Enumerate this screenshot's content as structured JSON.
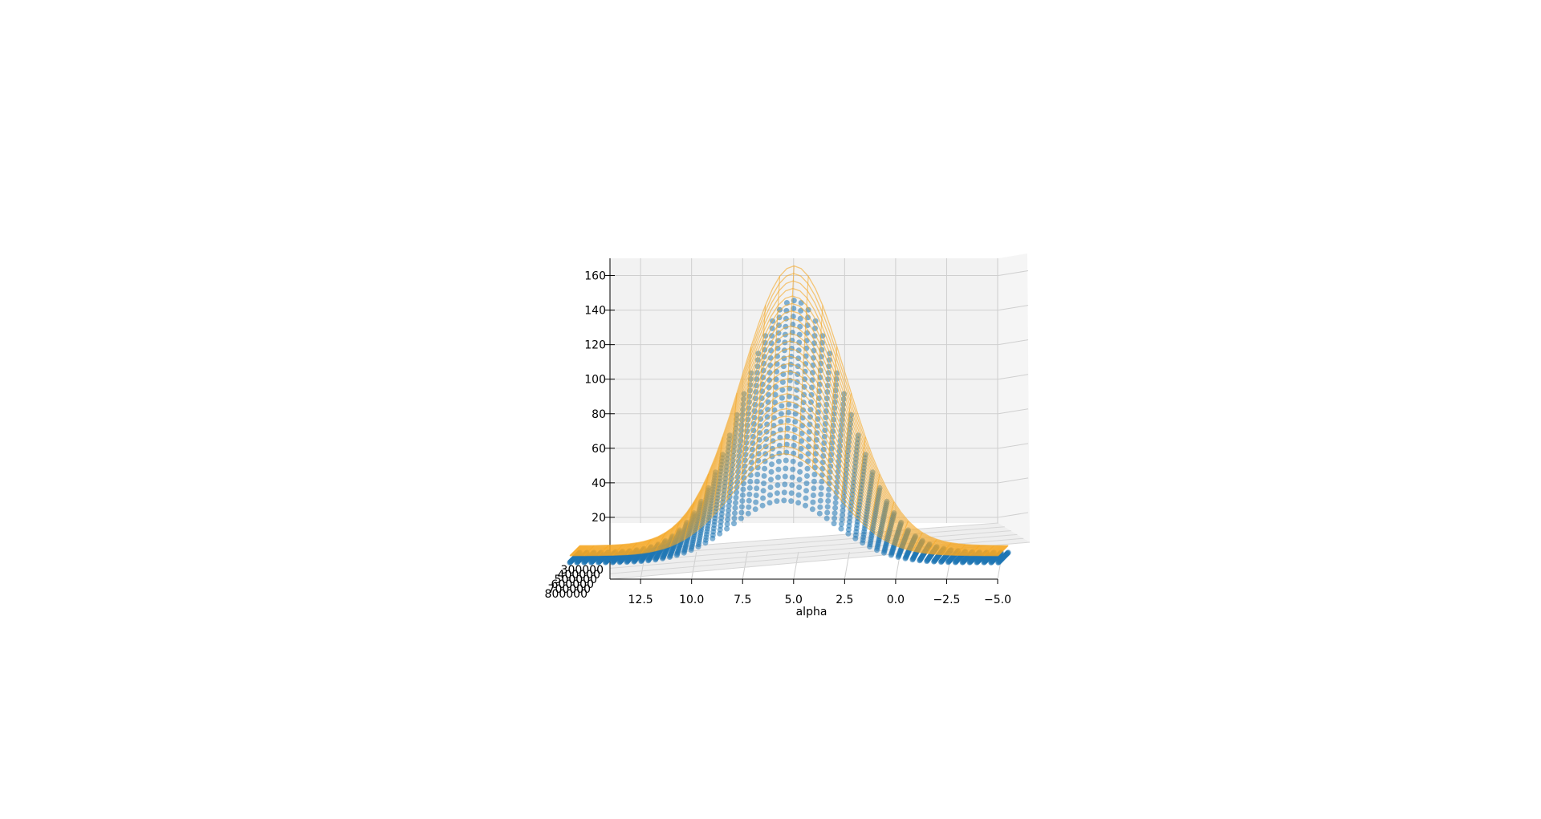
{
  "chart_data": {
    "type": "surface-3d",
    "title": "",
    "xlabel": "alpha",
    "ylabel": "",
    "zlabel": "",
    "x_ticks": [
      "12.5",
      "10.0",
      "7.5",
      "5.0",
      "2.5",
      "0.0",
      "−2.5",
      "−5.0"
    ],
    "x_tick_values": [
      12.5,
      10.0,
      7.5,
      5.0,
      2.5,
      0.0,
      -2.5,
      -5.0
    ],
    "y_ticks": [
      "300000",
      "400000",
      "500000",
      "600000",
      "700000",
      "800000"
    ],
    "y_tick_values": [
      300000,
      400000,
      500000,
      600000,
      700000,
      800000
    ],
    "z_ticks": [
      "20",
      "40",
      "60",
      "80",
      "100",
      "120",
      "140",
      "160"
    ],
    "z_tick_values": [
      20,
      40,
      60,
      80,
      100,
      120,
      140,
      160
    ],
    "xlim": [
      -5.0,
      14.0
    ],
    "ylim": [
      300000,
      800000
    ],
    "zlim": [
      0,
      170
    ],
    "grid": true,
    "series": [
      {
        "kind": "wireframe",
        "color": "#f5a623",
        "peak_alpha": 5.0,
        "peak_z": [
          67,
          170
        ],
        "width_alpha": 3.6,
        "tail_z": 8
      },
      {
        "kind": "scatter",
        "color": "#1f77b4",
        "peak_alpha": 5.0,
        "peak_z": [
          40,
          150
        ],
        "width_alpha": 3.6,
        "tail_z": 4
      }
    ]
  }
}
